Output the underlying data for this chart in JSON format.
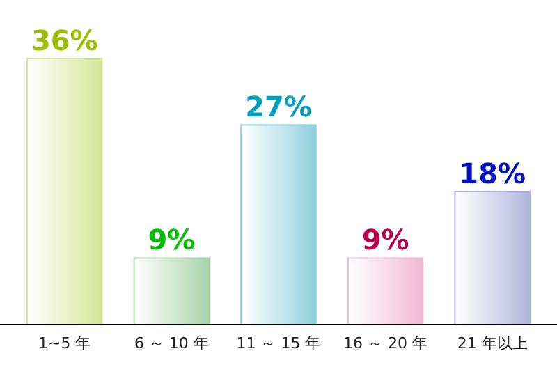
{
  "chart_data": {
    "type": "bar",
    "categories": [
      "1~5 年",
      "6 ～ 10 年",
      "11 ～ 15 年",
      "16 ～ 20 年",
      "21 年以上"
    ],
    "values": [
      36,
      9,
      27,
      9,
      18
    ],
    "colors": [
      "#d6e496",
      "#a8d3a8",
      "#8fd0dc",
      "#f0b8d0",
      "#b0b4dc"
    ],
    "value_labels": [
      "36%",
      "9%",
      "27%",
      "9%",
      "18%"
    ]
  }
}
